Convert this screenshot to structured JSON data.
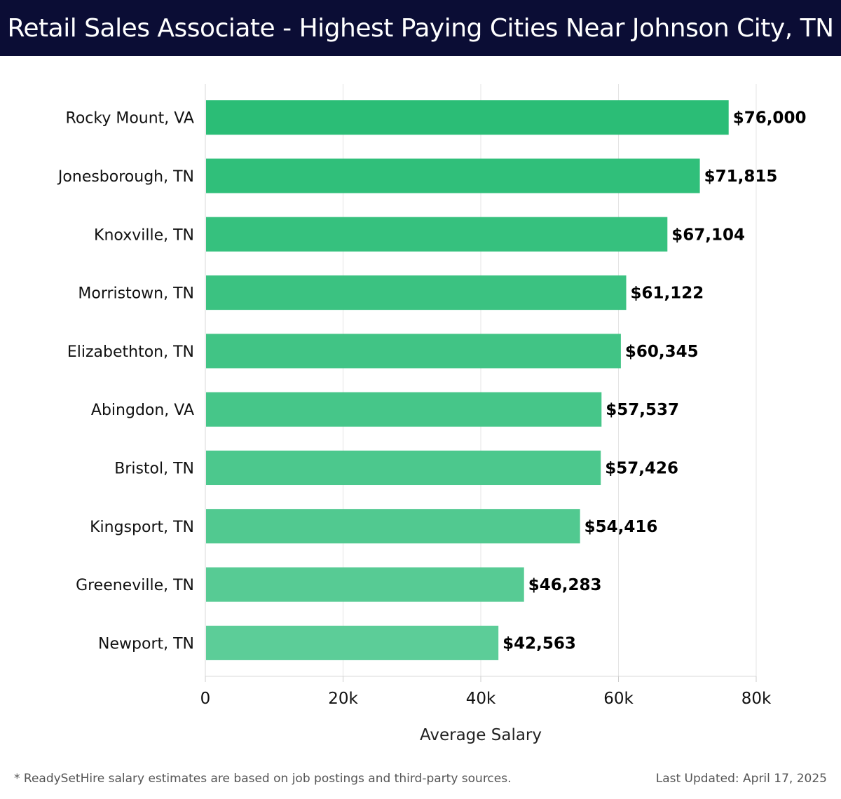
{
  "header": {
    "title": "Retail Sales Associate - Highest Paying Cities Near Johnson City, TN"
  },
  "chart_data": {
    "type": "bar",
    "orientation": "horizontal",
    "title": "Retail Sales Associate - Highest Paying Cities Near Johnson City, TN",
    "xlabel": "Average Salary",
    "ylabel": "",
    "xlim": [
      0,
      80000
    ],
    "x_ticks": [
      {
        "value": 0,
        "label": "0"
      },
      {
        "value": 20000,
        "label": "20k"
      },
      {
        "value": 40000,
        "label": "40k"
      },
      {
        "value": 60000,
        "label": "60k"
      },
      {
        "value": 80000,
        "label": "80k"
      }
    ],
    "grid": true,
    "categories": [
      "Rocky Mount, VA",
      "Jonesborough, TN",
      "Knoxville, TN",
      "Morristown, TN",
      "Elizabethton, TN",
      "Abingdon, VA",
      "Bristol, TN",
      "Kingsport, TN",
      "Greeneville, TN",
      "Newport, TN"
    ],
    "values": [
      76000,
      71815,
      67104,
      61122,
      60345,
      57537,
      57426,
      54416,
      46283,
      42563
    ],
    "value_labels": [
      "$76,000",
      "$71,815",
      "$67,104",
      "$61,122",
      "$60,345",
      "$57,537",
      "$57,426",
      "$54,416",
      "$46,283",
      "$42,563"
    ],
    "bar_color_start": "#2bbd76",
    "bar_color_end": "#5ccd98"
  },
  "footer": {
    "note": "* ReadySetHire salary estimates are based on job postings and third-party sources.",
    "updated": "Last Updated: April 17, 2025"
  }
}
